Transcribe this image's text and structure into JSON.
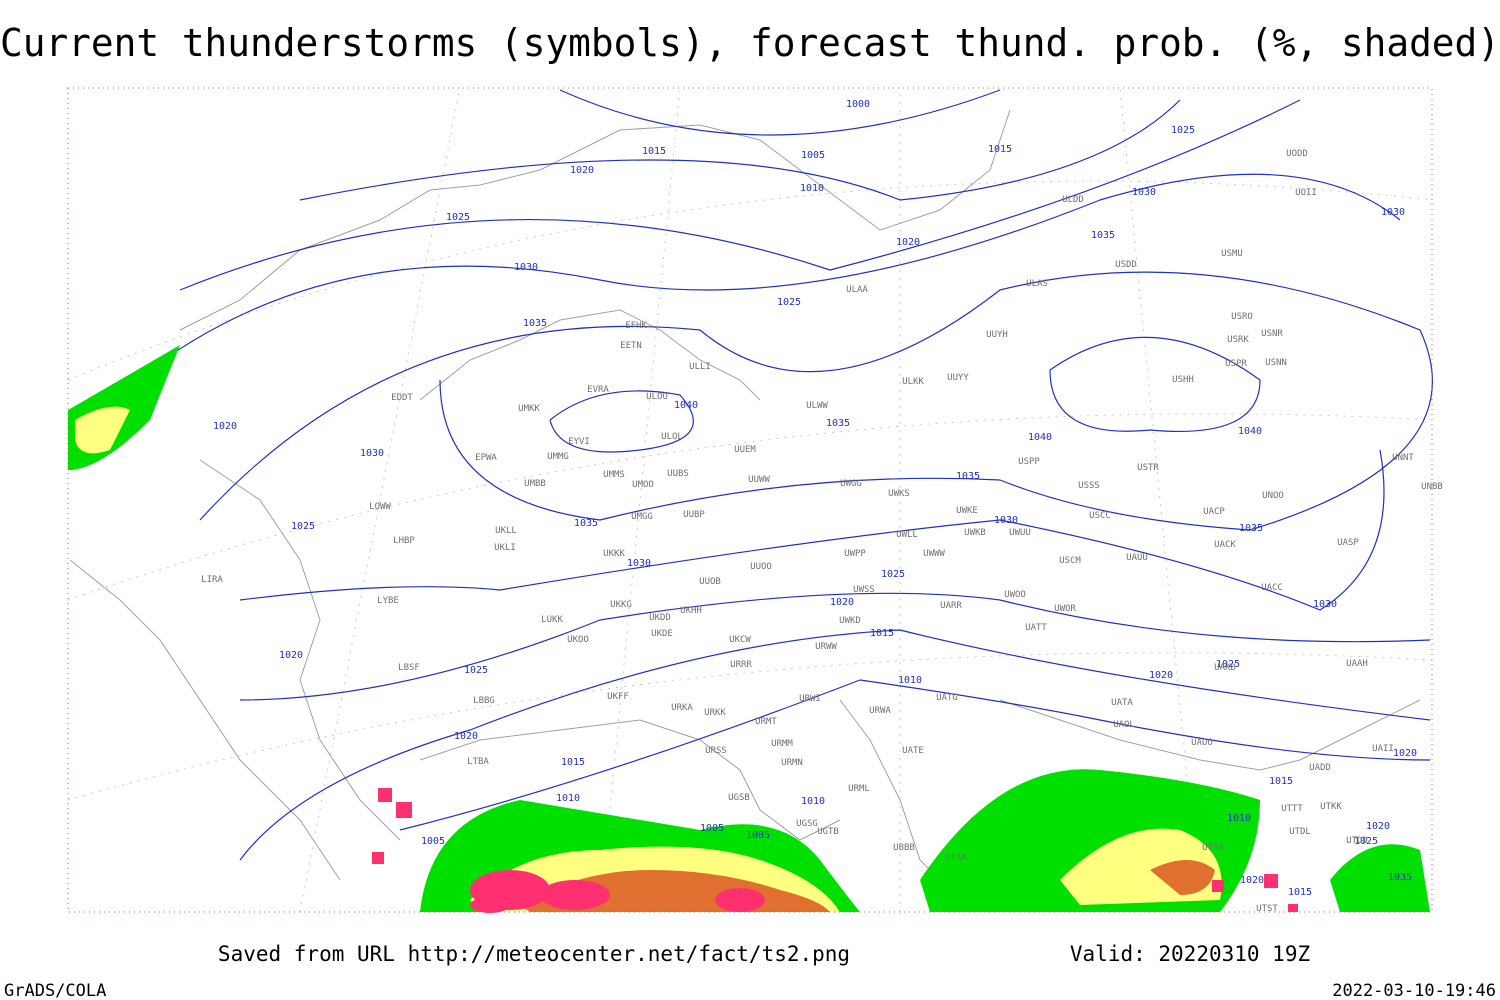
{
  "title": "Current thunderstorms (symbols), forecast thund. prob. (%, shaded)",
  "isobar_labels": [
    1000,
    1015,
    1005,
    1010,
    1015,
    1025,
    1020,
    1025,
    1030,
    1030,
    1020,
    1035,
    1030,
    1025,
    1035,
    1040,
    1035,
    1040,
    1040,
    1020,
    1030,
    1035,
    1035,
    1030,
    1035,
    1025,
    1030,
    1025,
    1020,
    1030,
    1015,
    1020,
    1025,
    1025,
    1020,
    1010,
    1020,
    1015,
    1020,
    1010,
    1015,
    1010,
    1005,
    1005,
    1005,
    1010,
    1025,
    1020,
    1020,
    1015,
    1035
  ],
  "stations": [
    "ULDD",
    "UODD",
    "UOII",
    "USMU",
    "USDD",
    "ULAA",
    "ULAS",
    "USRO",
    "USRK",
    "USNR",
    "USPR",
    "USNN",
    "USHH",
    "EFHK",
    "EETN",
    "ULLI",
    "ULKK",
    "UUYY",
    "UUYH",
    "EVRA",
    "ULOO",
    "UMKK",
    "EDDT",
    "ULWW",
    "EYVI",
    "ULOL",
    "UUEM",
    "EPWA",
    "UMMG",
    "USPP",
    "USTR",
    "UNNT",
    "UNBB",
    "UMMS",
    "UMOO",
    "UUBS",
    "UUWW",
    "UWGG",
    "UWKS",
    "USSS",
    "UNOO",
    "UMBB",
    "LOWW",
    "UWKE",
    "UUBP",
    "UMGG",
    "USCC",
    "UACP",
    "UKLL",
    "UWLL",
    "UWKB",
    "UWUU",
    "UACK",
    "UASP",
    "LHBP",
    "UKLI",
    "UKKK",
    "UWPP",
    "UWWW",
    "USCM",
    "UAUU",
    "LIRA",
    "UUOO",
    "UUOB",
    "UACC",
    "LYBE",
    "UWSS",
    "UARR",
    "UWOO",
    "UWOR",
    "UKHH",
    "UKKG",
    "UKDD",
    "LUKK",
    "UWKD",
    "UKDE",
    "UATT",
    "UKOO",
    "UKCW",
    "URWW",
    "LBSF",
    "URRR",
    "UAKD",
    "UAAH",
    "UKFF",
    "URKA",
    "URKK",
    "URWI",
    "UATG",
    "UATA",
    "URMT",
    "URWA",
    "UAOL",
    "UAOO",
    "LBBG",
    "URSS",
    "URMM",
    "UATE",
    "UADD",
    "UAII",
    "URMN",
    "LTBA",
    "UGSB",
    "URML",
    "UGSG",
    "UGTB",
    "UBBB",
    "UTTT",
    "UTKK",
    "UTDL",
    "UTAA",
    "UTSA",
    "UTDD",
    "UTST"
  ],
  "footer": {
    "saved": "Saved from URL http://meteocenter.net/fact/ts2.png",
    "valid": "Valid: 20220310 19Z",
    "software": "GrADS/COLA",
    "timestamp": "2022-03-10-19:46"
  }
}
